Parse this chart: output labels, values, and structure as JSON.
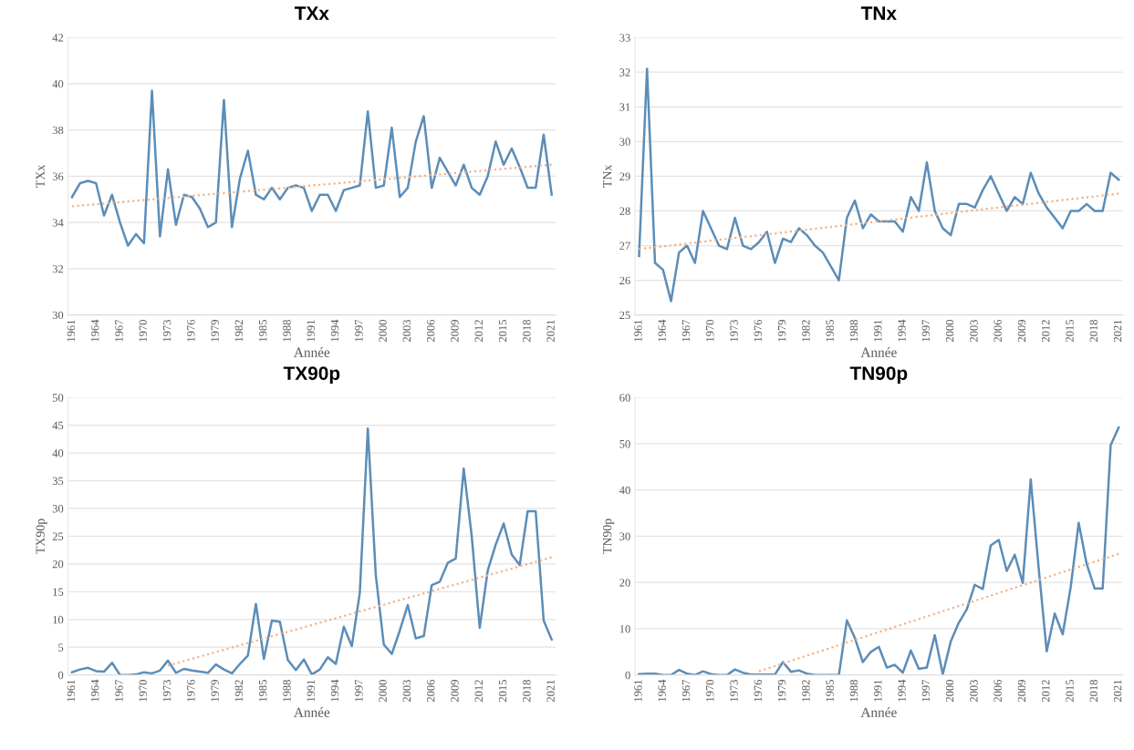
{
  "chart_data": [
    {
      "type": "line",
      "title": "TXx",
      "xlabel": "Année",
      "ylabel": "TXx",
      "xlim": [
        1960.5,
        2021.5
      ],
      "xticks": [
        1961,
        1964,
        1967,
        1970,
        1973,
        1976,
        1979,
        1982,
        1985,
        1988,
        1991,
        1994,
        1997,
        2000,
        2003,
        2006,
        2009,
        2012,
        2015,
        2018,
        2021
      ],
      "ylim": [
        30,
        42
      ],
      "yticks": [
        30,
        32,
        34,
        36,
        38,
        40,
        42
      ],
      "grid": "y",
      "x": [
        1961,
        1962,
        1963,
        1964,
        1965,
        1966,
        1967,
        1968,
        1969,
        1970,
        1971,
        1972,
        1973,
        1974,
        1975,
        1976,
        1977,
        1978,
        1979,
        1980,
        1981,
        1982,
        1983,
        1984,
        1985,
        1986,
        1987,
        1988,
        1989,
        1990,
        1991,
        1992,
        1993,
        1994,
        1995,
        1996,
        1997,
        1998,
        1999,
        2000,
        2001,
        2002,
        2003,
        2004,
        2005,
        2006,
        2007,
        2008,
        2009,
        2010,
        2011,
        2012,
        2013,
        2014,
        2015,
        2016,
        2017,
        2018,
        2019,
        2020,
        2021
      ],
      "series": [
        {
          "color": "#5b8db8",
          "line_style": "solid",
          "values": [
            35.1,
            35.7,
            35.8,
            35.7,
            34.3,
            35.2,
            34.0,
            33.0,
            33.5,
            33.1,
            39.7,
            33.4,
            36.3,
            33.9,
            35.2,
            35.1,
            34.6,
            33.8,
            34.0,
            39.3,
            33.8,
            35.9,
            37.1,
            35.2,
            35.0,
            35.5,
            35.0,
            35.5,
            35.6,
            35.5,
            34.5,
            35.2,
            35.2,
            34.5,
            35.4,
            35.5,
            35.6,
            38.8,
            35.5,
            35.6,
            38.1,
            35.1,
            35.5,
            37.5,
            38.6,
            35.5,
            36.8,
            36.2,
            35.6,
            36.5,
            35.5,
            35.2,
            36.0,
            37.5,
            36.5,
            37.2,
            36.4,
            35.5,
            35.5,
            37.8,
            35.2
          ]
        },
        {
          "type": "line",
          "color": "#f4b183",
          "line_style": "dotted",
          "x": [
            1961,
            2021
          ],
          "values": [
            34.7,
            36.5
          ]
        }
      ]
    },
    {
      "type": "line",
      "title": "TNx",
      "xlabel": "Année",
      "ylabel": "TNx",
      "xlim": [
        1960.5,
        2021.5
      ],
      "xticks": [
        1961,
        1964,
        1967,
        1970,
        1973,
        1976,
        1979,
        1982,
        1985,
        1988,
        1991,
        1994,
        1997,
        2000,
        2003,
        2006,
        2009,
        2012,
        2015,
        2018,
        2021
      ],
      "ylim": [
        25,
        33
      ],
      "yticks": [
        25,
        26,
        27,
        28,
        29,
        30,
        31,
        32,
        33
      ],
      "grid": "y",
      "x": [
        1961,
        1962,
        1963,
        1964,
        1965,
        1966,
        1967,
        1968,
        1969,
        1970,
        1971,
        1972,
        1973,
        1974,
        1975,
        1976,
        1977,
        1978,
        1979,
        1980,
        1981,
        1982,
        1983,
        1984,
        1985,
        1986,
        1987,
        1988,
        1989,
        1990,
        1991,
        1992,
        1993,
        1994,
        1995,
        1996,
        1997,
        1998,
        1999,
        2000,
        2001,
        2002,
        2003,
        2004,
        2005,
        2006,
        2007,
        2008,
        2009,
        2010,
        2011,
        2012,
        2013,
        2014,
        2015,
        2016,
        2017,
        2018,
        2019,
        2020,
        2021
      ],
      "series": [
        {
          "color": "#5b8db8",
          "line_style": "solid",
          "values": [
            26.7,
            32.1,
            26.5,
            26.3,
            25.4,
            26.8,
            27.0,
            26.5,
            28.0,
            27.5,
            27.0,
            26.9,
            27.8,
            27.0,
            26.9,
            27.1,
            27.4,
            26.5,
            27.2,
            27.1,
            27.5,
            27.3,
            27.0,
            26.8,
            26.4,
            26.0,
            27.8,
            28.3,
            27.5,
            27.9,
            27.7,
            27.7,
            27.7,
            27.4,
            28.4,
            28.0,
            29.4,
            28.0,
            27.5,
            27.3,
            28.2,
            28.2,
            28.1,
            28.6,
            29.0,
            28.5,
            28.0,
            28.4,
            28.2,
            29.1,
            28.5,
            28.1,
            27.8,
            27.5,
            28.0,
            28.0,
            28.2,
            28.0,
            28.0,
            29.1,
            28.9
          ]
        },
        {
          "type": "line",
          "color": "#f4b183",
          "line_style": "dotted",
          "x": [
            1961,
            2021
          ],
          "values": [
            26.9,
            28.5
          ]
        }
      ]
    },
    {
      "type": "line",
      "title": "TX90p",
      "xlabel": "Année",
      "ylabel": "TX90p",
      "xlim": [
        1960.5,
        2021.5
      ],
      "xticks": [
        1961,
        1964,
        1967,
        1970,
        1973,
        1976,
        1979,
        1982,
        1985,
        1988,
        1991,
        1994,
        1997,
        2000,
        2003,
        2006,
        2009,
        2012,
        2015,
        2018,
        2021
      ],
      "ylim": [
        0,
        50
      ],
      "yticks": [
        0,
        5,
        10,
        15,
        20,
        25,
        30,
        35,
        40,
        45,
        50
      ],
      "grid": "y",
      "x": [
        1961,
        1962,
        1963,
        1964,
        1965,
        1966,
        1967,
        1968,
        1969,
        1970,
        1971,
        1972,
        1973,
        1974,
        1975,
        1976,
        1977,
        1978,
        1979,
        1980,
        1981,
        1982,
        1983,
        1984,
        1985,
        1986,
        1987,
        1988,
        1989,
        1990,
        1991,
        1992,
        1993,
        1994,
        1995,
        1996,
        1997,
        1998,
        1999,
        2000,
        2001,
        2002,
        2003,
        2004,
        2005,
        2006,
        2007,
        2008,
        2009,
        2010,
        2011,
        2012,
        2013,
        2014,
        2015,
        2016,
        2017,
        2018,
        2019,
        2020,
        2021
      ],
      "series": [
        {
          "color": "#5b8db8",
          "line_style": "solid",
          "values": [
            0.5,
            1.0,
            1.3,
            0.7,
            0.6,
            2.2,
            0,
            0,
            0.1,
            0.5,
            0.3,
            0.8,
            2.6,
            0.4,
            1.1,
            0.8,
            0.6,
            0.4,
            1.9,
            1.0,
            0.3,
            2.0,
            3.5,
            12.8,
            2.9,
            9.8,
            9.6,
            2.7,
            0.9,
            2.8,
            0.1,
            1.0,
            3.2,
            2.0,
            8.7,
            5.2,
            14.8,
            44.4,
            18.0,
            5.5,
            3.8,
            8.0,
            12.6,
            6.6,
            7.0,
            16.2,
            16.8,
            20.2,
            21.0,
            37.2,
            25.0,
            8.5,
            18.8,
            23.5,
            27.3,
            21.7,
            19.8,
            29.5,
            29.5,
            9.8,
            6.4
          ]
        },
        {
          "type": "line",
          "color": "#f4b183",
          "line_style": "dotted",
          "x": [
            1973,
            2021
          ],
          "values": [
            1.7,
            21.2
          ]
        }
      ]
    },
    {
      "type": "line",
      "title": "TN90p",
      "xlabel": "Année",
      "ylabel": "TN90p",
      "xlim": [
        1960.5,
        2021.5
      ],
      "xticks": [
        1961,
        1964,
        1967,
        1970,
        1973,
        1976,
        1979,
        1982,
        1985,
        1988,
        1991,
        1994,
        1997,
        2000,
        2003,
        2006,
        2009,
        2012,
        2015,
        2018,
        2021
      ],
      "ylim": [
        0,
        60
      ],
      "yticks": [
        0,
        10,
        20,
        30,
        40,
        50,
        60
      ],
      "grid": "y",
      "x": [
        1961,
        1962,
        1963,
        1964,
        1965,
        1966,
        1967,
        1968,
        1969,
        1970,
        1971,
        1972,
        1973,
        1974,
        1975,
        1976,
        1977,
        1978,
        1979,
        1980,
        1981,
        1982,
        1983,
        1984,
        1985,
        1986,
        1987,
        1988,
        1989,
        1990,
        1991,
        1992,
        1993,
        1994,
        1995,
        1996,
        1997,
        1998,
        1999,
        2000,
        2001,
        2002,
        2003,
        2004,
        2005,
        2006,
        2007,
        2008,
        2009,
        2010,
        2011,
        2012,
        2013,
        2014,
        2015,
        2016,
        2017,
        2018,
        2019,
        2020,
        2021
      ],
      "series": [
        {
          "color": "#5b8db8",
          "line_style": "solid",
          "values": [
            0.2,
            0.3,
            0.3,
            0,
            0,
            1.1,
            0.3,
            0,
            0.8,
            0.2,
            0,
            0,
            1.2,
            0.5,
            0.1,
            0.1,
            0.1,
            0.1,
            2.8,
            0.7,
            1.0,
            0.3,
            0,
            0,
            0,
            0,
            11.8,
            8.0,
            2.8,
            5.0,
            6.1,
            1.6,
            2.2,
            0.5,
            5.3,
            1.3,
            1.6,
            8.6,
            0.2,
            7.3,
            11.3,
            14.2,
            19.5,
            18.6,
            28.0,
            29.2,
            22.5,
            26.0,
            19.9,
            42.3,
            23.0,
            5.1,
            13.3,
            8.8,
            19.0,
            32.9,
            24.0,
            18.7,
            18.7,
            49.7,
            53.5
          ]
        },
        {
          "type": "line",
          "color": "#f4b183",
          "line_style": "dotted",
          "x": [
            1976,
            2021
          ],
          "values": [
            0.8,
            26.2
          ]
        }
      ]
    }
  ]
}
